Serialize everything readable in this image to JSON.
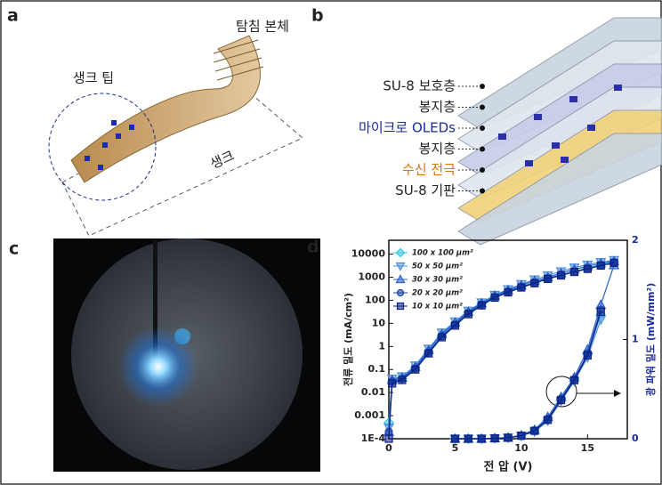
{
  "panels": {
    "a": {
      "label": "a",
      "probe_body": "탐침 본체",
      "shank_tip": "생크 팁",
      "shank": "생크"
    },
    "b": {
      "label": "b",
      "layers": [
        "SU-8 보호층",
        "봉지층",
        "마이크로 OLEDs",
        "봉지층",
        "수신 전극",
        "SU-8 기판"
      ]
    },
    "c": {
      "label": "c"
    },
    "d": {
      "label": "d"
    }
  },
  "chart_data": {
    "type": "line",
    "xlabel": "전 압 (V)",
    "ylabel": "전류 밀도 (mA/cm²)",
    "y2label": "광 파워 밀도 (mW/mm²)",
    "x": [
      0,
      0.25,
      1,
      2,
      3,
      4,
      5,
      6,
      7,
      8,
      9,
      10,
      11,
      12,
      13,
      14,
      15,
      16,
      17
    ],
    "xlim": [
      0,
      18
    ],
    "xticks": [
      0,
      5,
      10,
      15
    ],
    "ylim": [
      0.0001,
      40000
    ],
    "log_y": true,
    "yticks": [
      {
        "value": 0.0001,
        "label": "1E-4"
      },
      0.001,
      0.01,
      0.1,
      1,
      10,
      100,
      1000,
      10000
    ],
    "y2lim": [
      0,
      2
    ],
    "y2ticks": [
      0,
      1,
      2
    ],
    "legend": "upper left",
    "series": [
      {
        "name": "100 x 100 μm²",
        "color": "#33c6e8",
        "marker": "diamond",
        "values": [
          0.0005,
          0.03,
          0.04,
          0.12,
          0.6,
          3,
          10,
          30,
          70,
          150,
          250,
          400,
          600,
          900,
          1300,
          1800,
          2500,
          3500,
          4500
        ],
        "y2_values": [
          null,
          null,
          null,
          null,
          null,
          null,
          0,
          0,
          0,
          0.005,
          0.01,
          0.03,
          0.08,
          0.2,
          0.4,
          0.6,
          0.85,
          1.25,
          null
        ]
      },
      {
        "name": "50 x 50 μm²",
        "color": "#4f8fdc",
        "marker": "triangle-down",
        "values": [
          0.0003,
          0.04,
          0.05,
          0.15,
          0.8,
          4,
          12,
          35,
          80,
          170,
          300,
          500,
          800,
          1200,
          1800,
          2600,
          3500,
          4500,
          5500
        ],
        "y2_values": [
          null,
          null,
          null,
          null,
          null,
          null,
          0,
          0,
          0,
          0.004,
          0.01,
          0.03,
          0.07,
          0.18,
          0.38,
          0.58,
          0.82,
          1.2,
          null
        ]
      },
      {
        "name": "30 x 30 μm²",
        "color": "#2a5fcf",
        "marker": "triangle-up",
        "values": [
          0.0002,
          0.035,
          0.045,
          0.13,
          0.7,
          3.5,
          11,
          32,
          75,
          160,
          280,
          450,
          700,
          1000,
          1500,
          2200,
          3000,
          4000,
          5000
        ],
        "y2_values": [
          null,
          null,
          null,
          null,
          null,
          null,
          0,
          0,
          0,
          0.005,
          0.012,
          0.035,
          0.09,
          0.22,
          0.42,
          0.62,
          0.9,
          1.35,
          1.75
        ]
      },
      {
        "name": "20 x 20 μm²",
        "color": "#1b43a8",
        "marker": "circle",
        "values": [
          0.0002,
          0.03,
          0.04,
          0.11,
          0.55,
          2.8,
          9,
          28,
          65,
          140,
          240,
          380,
          580,
          880,
          1250,
          1750,
          2400,
          3300,
          4300
        ],
        "y2_values": [
          null,
          null,
          null,
          null,
          null,
          null,
          0,
          0,
          0,
          0.005,
          0.01,
          0.03,
          0.08,
          0.2,
          0.4,
          0.6,
          0.86,
          1.3,
          null
        ]
      },
      {
        "name": "10 x 10 μm²",
        "color": "#0b2183",
        "marker": "square",
        "values": [
          0.0001,
          0.025,
          0.035,
          0.1,
          0.5,
          2.5,
          8,
          25,
          60,
          130,
          220,
          360,
          550,
          850,
          1200,
          1700,
          2300,
          3200,
          4200
        ],
        "y2_values": [
          null,
          null,
          null,
          null,
          null,
          null,
          0,
          0,
          0,
          0.004,
          0.01,
          0.03,
          0.08,
          0.19,
          0.39,
          0.59,
          0.84,
          1.28,
          null
        ]
      }
    ]
  }
}
